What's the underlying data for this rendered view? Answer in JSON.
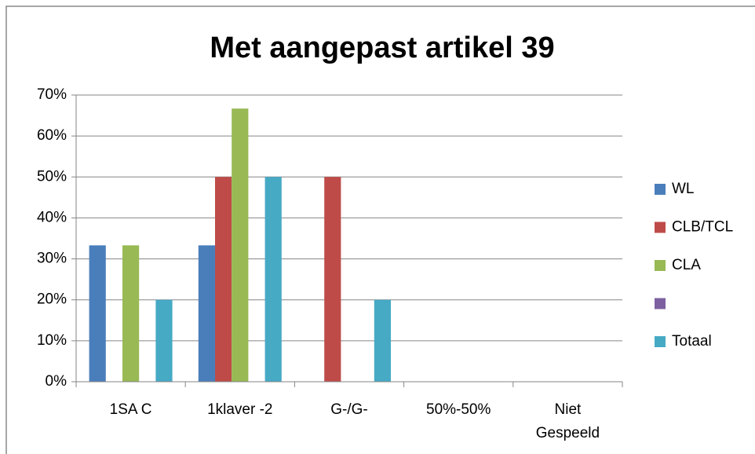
{
  "chart_data": {
    "type": "bar",
    "title": "Met aangepast artikel 39",
    "categories": [
      "1SA C",
      "1klaver -2",
      "G-/G-",
      "50%-50%",
      "Niet Gespeeld"
    ],
    "series": [
      {
        "name": "WL",
        "color": "#4a7ebb",
        "values": [
          33.3,
          33.3,
          0,
          0,
          0
        ]
      },
      {
        "name": "CLB/TCL",
        "color": "#be4b48",
        "values": [
          0,
          50,
          50,
          0,
          0
        ]
      },
      {
        "name": "CLA",
        "color": "#98b954",
        "values": [
          33.3,
          66.7,
          0,
          0,
          0
        ]
      },
      {
        "color": "#7d60a0",
        "values": [
          0,
          0,
          0,
          0,
          0
        ]
      },
      {
        "name": "Totaal",
        "color": "#46aac5",
        "values": [
          20,
          50,
          20,
          0,
          0
        ]
      }
    ],
    "ylim": [
      0,
      70
    ],
    "yticks": [
      {
        "value": 0,
        "label": "0%"
      },
      {
        "value": 10,
        "label": "10%"
      },
      {
        "value": 20,
        "label": "20%"
      },
      {
        "value": 30,
        "label": "30%"
      },
      {
        "value": 40,
        "label": "40%"
      },
      {
        "value": 50,
        "label": "50%"
      },
      {
        "value": 60,
        "label": "60%"
      },
      {
        "value": 70,
        "label": "70%"
      }
    ],
    "grid": true,
    "legend": "right"
  }
}
